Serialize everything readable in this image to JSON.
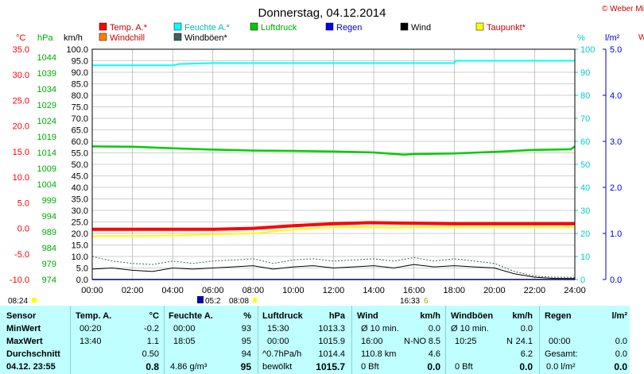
{
  "chart_data": {
    "type": "line",
    "title": "Donnerstag, 04.12.2014",
    "copyright": "© Weber Mike",
    "axes_units": {
      "temp": "°C",
      "hpa": "hPa",
      "kmh": "km/h",
      "pct": "%",
      "lm2": "l/m²"
    },
    "legend": [
      {
        "label": "Temp. A.*",
        "color": "#ff0000"
      },
      {
        "label": "Feuchte A.*",
        "color": "#00ffff"
      },
      {
        "label": "Luftdruck",
        "color": "#00cc00"
      },
      {
        "label": "Regen",
        "color": "#0000ff"
      },
      {
        "label": "Wind",
        "color": "#000000"
      },
      {
        "label": "Taupunkt*",
        "color": "#ffff00"
      },
      {
        "label": "Windchill",
        "color": "#ff8000"
      },
      {
        "label": "Windböen*",
        "color": "#406060"
      }
    ],
    "x_ticks": [
      "00:00",
      "02:00",
      "04:00",
      "06:00",
      "08:00",
      "10:00",
      "12:00",
      "14:00",
      "16:00",
      "18:00",
      "20:00",
      "22:00",
      "24:00"
    ],
    "temp_ticks": [
      "35.0",
      "30.0",
      "25.0",
      "20.0",
      "15.0",
      "10.0",
      "5.0",
      "0.0",
      "-5.0",
      "-10.0"
    ],
    "hpa_ticks": [
      "1044",
      "1039",
      "1034",
      "1029",
      "1024",
      "1019",
      "1014",
      "1009",
      "1004",
      "999",
      "994",
      "989",
      "984",
      "979",
      "974"
    ],
    "kmh_ticks": [
      "100.0",
      "95.0",
      "90.0",
      "85.0",
      "80.0",
      "75.0",
      "70.0",
      "65.0",
      "60.0",
      "55.0",
      "50.0",
      "45.0",
      "40.0",
      "35.0",
      "30.0",
      "25.0",
      "20.0",
      "15.0",
      "10.0",
      "5.0",
      "0.0"
    ],
    "pct_ticks": [
      "100",
      "90",
      "80",
      "70",
      "60",
      "50",
      "40",
      "30",
      "20",
      "10",
      "0"
    ],
    "lm2_ticks": [
      "5.0",
      "4.0",
      "3.0",
      "2.0",
      "1.0",
      "0.0"
    ],
    "series": [
      {
        "name": "Temp. A.*",
        "color": "#ff0000",
        "scale": "temp",
        "x": [
          0,
          2,
          4,
          6,
          8,
          10,
          11,
          12,
          13,
          13.67,
          14,
          16,
          18,
          20,
          22,
          24
        ],
        "y": [
          -0.2,
          -0.2,
          -0.2,
          -0.2,
          0.0,
          0.5,
          0.7,
          0.9,
          1.0,
          1.1,
          1.1,
          1.0,
          0.9,
          0.9,
          0.9,
          0.9
        ]
      },
      {
        "name": "Feuchte A.*",
        "color": "#00ffff",
        "scale": "pct",
        "x": [
          0,
          4,
          4.3,
          6,
          12,
          18,
          18.08,
          24
        ],
        "y": [
          93,
          93,
          93.6,
          94,
          94,
          94,
          95,
          95
        ]
      },
      {
        "name": "Luftdruck",
        "color": "#00cc00",
        "scale": "hpa",
        "x": [
          0,
          2,
          4,
          6,
          8,
          10,
          12,
          14,
          15.5,
          16,
          18,
          20,
          22,
          23.8,
          24
        ],
        "y": [
          1015.9,
          1015.8,
          1015.3,
          1014.9,
          1014.6,
          1014.5,
          1014.3,
          1014.0,
          1013.3,
          1013.5,
          1013.7,
          1014.2,
          1014.8,
          1015.0,
          1015.9
        ]
      },
      {
        "name": "Taupunkt*",
        "color": "#ffff00",
        "scale": "temp",
        "x": [
          0,
          2,
          4,
          6,
          8,
          9,
          10,
          11,
          12,
          14,
          15,
          16,
          18,
          20,
          22,
          24
        ],
        "y": [
          -1.5,
          -1.5,
          -1.4,
          -1.2,
          -1.0,
          -0.6,
          -0.3,
          0.0,
          0.2,
          0.2,
          0.1,
          0.2,
          0.2,
          0.2,
          0.2,
          0.2
        ]
      },
      {
        "name": "Wind",
        "color": "#000000",
        "scale": "kmh",
        "x": [
          0,
          1,
          2,
          3,
          4,
          5,
          6,
          7,
          8,
          9,
          10,
          11,
          12,
          13,
          14,
          15,
          16,
          17,
          18,
          19,
          20,
          21,
          22,
          23,
          24
        ],
        "y": [
          4.5,
          5,
          4,
          3.5,
          5,
          4.5,
          5,
          5.5,
          6,
          4.5,
          5.5,
          6,
          5,
          5.5,
          6,
          5,
          6.5,
          5.5,
          6,
          5.5,
          5,
          2.5,
          1,
          0.5,
          0.5
        ]
      },
      {
        "name": "Windböen*",
        "color": "#406060",
        "scale": "kmh",
        "x": [
          0,
          1,
          2,
          3,
          4,
          5,
          6,
          7,
          8,
          9,
          10,
          11,
          12,
          13,
          14,
          15,
          16,
          17,
          18,
          19,
          20,
          21,
          22,
          23,
          24
        ],
        "y": [
          10,
          8,
          7,
          6.5,
          8,
          7,
          8,
          8.5,
          9,
          7,
          8.5,
          9,
          8,
          8.5,
          9,
          8,
          9.5,
          8,
          9,
          8,
          7,
          3.5,
          1.5,
          1,
          1
        ]
      },
      {
        "name": "Regen",
        "color": "#0000ff",
        "scale": "lm2",
        "x": [
          0,
          24
        ],
        "y": [
          0,
          0
        ]
      }
    ],
    "sun_labels": {
      "sunrise_date": "08:24",
      "sunrise": "08:08",
      "set_left": "05:2",
      "sunset": "16:33",
      "sunset_tail": "6"
    }
  },
  "table": {
    "headers": {
      "sensor": "Sensor",
      "temp": "Temp. A.",
      "temp_unit": "°C",
      "hum": "Feuchte A.",
      "hum_unit": "%",
      "press": "Luftdruck",
      "press_unit": "hPa",
      "wind": "Wind",
      "wind_unit": "km/h",
      "gust": "Windböen",
      "gust_unit": "km/h",
      "rain": "Regen",
      "rain_unit": "l/m²"
    },
    "labels": {
      "min": "MinWert",
      "max": "MaxWert",
      "avg": "Durchschnitt",
      "now": "04.12. 23:55"
    },
    "temp": {
      "min_t": "00:20",
      "min_v": "-0.2",
      "max_t": "13:40",
      "max_v": "1.1",
      "avg": "0.50",
      "now": "0.8"
    },
    "hum": {
      "min_t": "00:00",
      "min_v": "93",
      "max_t": "18:05",
      "max_v": "95",
      "avg": "94",
      "now_extra": "4.86 g/m³",
      "now": "95"
    },
    "press": {
      "min_t": "15:30",
      "min_v": "1013.3",
      "max_t": "00:00",
      "max_v": "1015.9",
      "avg_l": "^0.7hPa/h",
      "avg": "1014.4",
      "now_l": "bewölkt",
      "now": "1015.7"
    },
    "wind": {
      "min_l": "Ø 10 min.",
      "min_v": "0.0",
      "max_t": "16:00",
      "max_d": "N-NO",
      "max_v": "8.5",
      "avg_l": "110.8 km",
      "avg": "4.6",
      "now_l": "0 Bft",
      "now": "0.0"
    },
    "gust": {
      "min_l": "Ø 10 min.",
      "min_v": "0.0",
      "max_t": "10:25",
      "max_d": "N",
      "max_v": "24.1",
      "avg": "6.2",
      "now_l": "0 Bft",
      "now": "0.0"
    },
    "rain": {
      "max_t": "00:00",
      "max_v": "0.0",
      "avg_l": "Gesamt:",
      "avg": "0.0",
      "now_l": "0.0 l/m²",
      "now": "0.0"
    }
  },
  "right_cut": {
    "top": "W"
  }
}
